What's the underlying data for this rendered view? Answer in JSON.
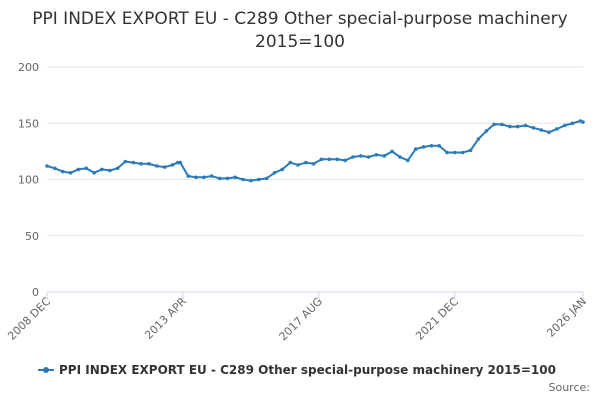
{
  "chart_data": {
    "type": "line",
    "title": "PPI INDEX EXPORT EU - C289 Other special-purpose machinery 2015=100",
    "xlabel": "",
    "ylabel": "",
    "ylim": [
      0,
      200
    ],
    "yticks": [
      0,
      50,
      100,
      150,
      200
    ],
    "xlim": [
      "2008 DEC",
      "2026 JAN"
    ],
    "xticks": [
      "2008 DEC",
      "2013 APR",
      "2017 AUG",
      "2021 DEC",
      "2026 JAN"
    ],
    "grid": "horizontal",
    "legend": "bottom",
    "series": [
      {
        "name": "PPI INDEX EXPORT EU - C289 Other special-purpose machinery 2015=100",
        "color": "#2b7bba",
        "x": [
          "2008-12",
          "2009-03",
          "2009-06",
          "2009-09",
          "2009-12",
          "2010-03",
          "2010-06",
          "2010-09",
          "2010-12",
          "2011-03",
          "2011-06",
          "2011-09",
          "2011-12",
          "2012-03",
          "2012-06",
          "2012-09",
          "2012-12",
          "2013-02",
          "2013-03",
          "2013-06",
          "2013-09",
          "2013-12",
          "2014-03",
          "2014-06",
          "2014-09",
          "2014-12",
          "2015-03",
          "2015-06",
          "2015-09",
          "2015-12",
          "2016-03",
          "2016-06",
          "2016-09",
          "2016-12",
          "2017-03",
          "2017-06",
          "2017-09",
          "2017-12",
          "2018-03",
          "2018-06",
          "2018-09",
          "2018-12",
          "2019-03",
          "2019-06",
          "2019-09",
          "2019-12",
          "2020-03",
          "2020-06",
          "2020-09",
          "2020-12",
          "2021-03",
          "2021-06",
          "2021-09",
          "2021-12",
          "2022-03",
          "2022-06",
          "2022-09",
          "2022-12",
          "2023-03",
          "2023-06",
          "2023-09",
          "2023-12",
          "2024-03",
          "2024-06",
          "2024-09",
          "2024-12",
          "2025-03",
          "2025-06",
          "2025-09",
          "2025-12",
          "2026-01"
        ],
        "values": [
          112,
          110,
          107,
          106,
          109,
          110,
          106,
          109,
          108,
          110,
          116,
          115,
          114,
          114,
          112,
          111,
          113,
          115,
          115,
          103,
          102,
          102,
          103,
          101,
          101,
          102,
          100,
          99,
          100,
          101,
          106,
          109,
          115,
          113,
          115,
          114,
          118,
          118,
          118,
          117,
          120,
          121,
          120,
          122,
          121,
          125,
          120,
          117,
          127,
          129,
          130,
          130,
          124,
          124,
          124,
          126,
          136,
          143,
          149,
          149,
          147,
          147,
          148,
          146,
          144,
          142,
          145,
          148,
          150,
          152,
          151
        ]
      }
    ]
  },
  "source_label": "Source:"
}
